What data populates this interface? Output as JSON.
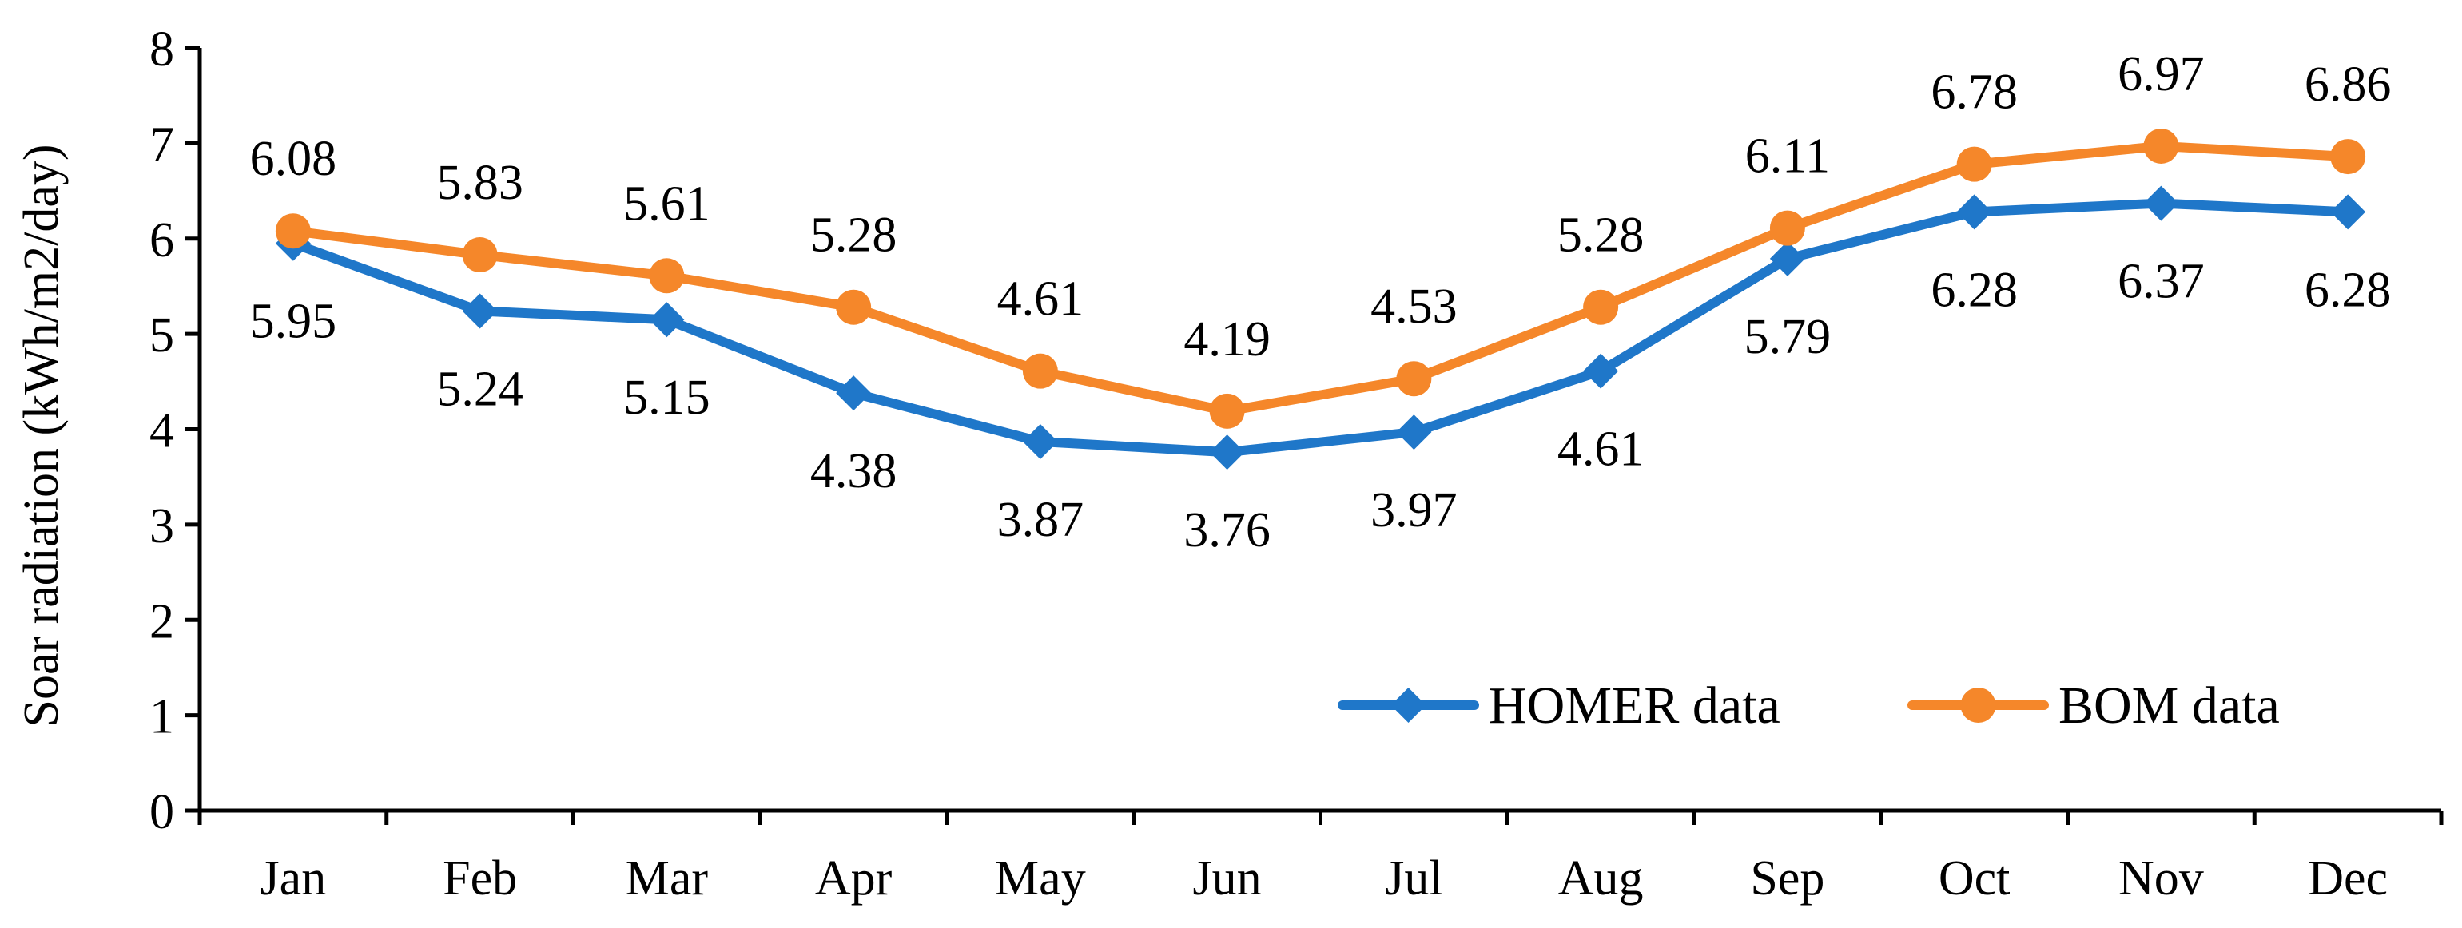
{
  "chart_data": {
    "type": "line",
    "title": "",
    "xlabel": "",
    "ylabel": "Soar radiation (kWh/m2/day)",
    "ylim": [
      0,
      8
    ],
    "yticks": [
      0,
      1,
      2,
      3,
      4,
      5,
      6,
      7,
      8
    ],
    "grid": false,
    "legend_position": "bottom-right",
    "categories": [
      "Jan",
      "Feb",
      "Mar",
      "Apr",
      "May",
      "Jun",
      "Jul",
      "Aug",
      "Sep",
      "Oct",
      "Nov",
      "Dec"
    ],
    "series": [
      {
        "name": "HOMER data",
        "color": "#1F77C9",
        "marker": "diamond",
        "label_position": "below",
        "values": [
          5.95,
          5.24,
          5.15,
          4.38,
          3.87,
          3.76,
          3.97,
          4.61,
          5.79,
          6.28,
          6.37,
          6.28
        ]
      },
      {
        "name": "BOM data",
        "color": "#F5872A",
        "marker": "circle",
        "label_position": "above",
        "values": [
          6.08,
          5.83,
          5.61,
          5.28,
          4.61,
          4.19,
          4.53,
          5.28,
          6.11,
          6.78,
          6.97,
          6.86
        ]
      }
    ]
  }
}
